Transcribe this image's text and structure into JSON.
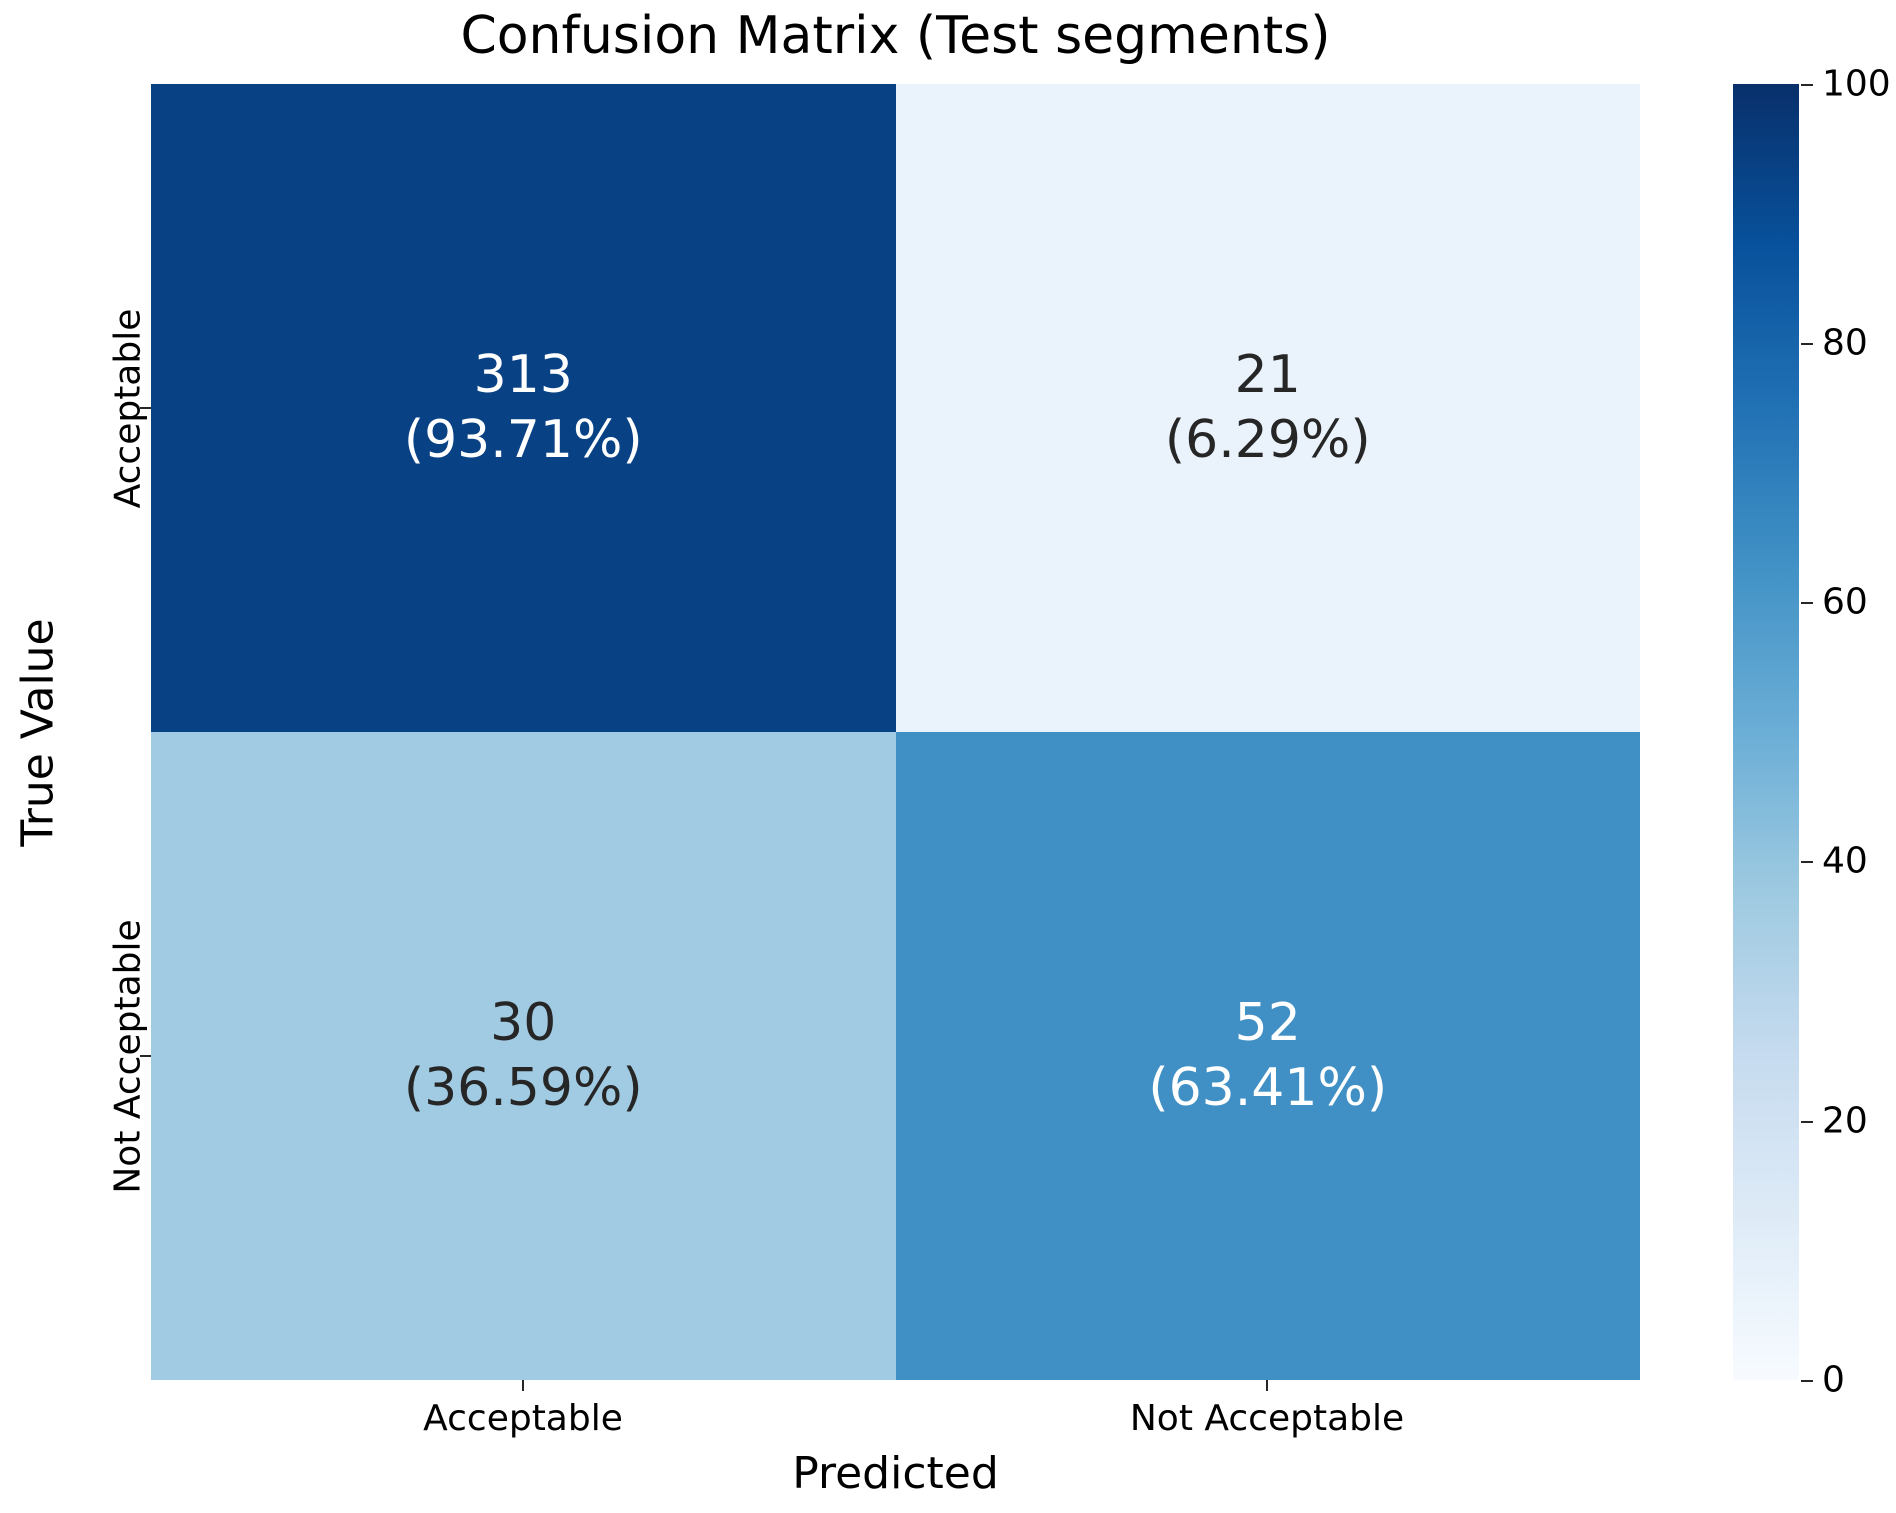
{
  "chart_data": {
    "type": "heatmap",
    "title": "Confusion Matrix (Test segments)",
    "xlabel": "Predicted",
    "ylabel": "True Value",
    "x_categories": [
      "Acceptable",
      "Not Acceptable"
    ],
    "y_categories": [
      "Acceptable",
      "Not Acceptable"
    ],
    "colormap": "Blues",
    "cells": [
      {
        "true": "Acceptable",
        "predicted": "Acceptable",
        "count": "313",
        "percent": "(93.71%)",
        "value": 93.71,
        "bg": "#084184",
        "fg": "#ffffff"
      },
      {
        "true": "Acceptable",
        "predicted": "Not Acceptable",
        "count": "21",
        "percent": "(6.29%)",
        "value": 6.29,
        "bg": "#eaf3fb",
        "fg": "#262626"
      },
      {
        "true": "Not Acceptable",
        "predicted": "Acceptable",
        "count": "30",
        "percent": "(36.59%)",
        "value": 36.59,
        "bg": "#a1cbe2",
        "fg": "#262626"
      },
      {
        "true": "Not Acceptable",
        "predicted": "Not Acceptable",
        "count": "52",
        "percent": "(63.41%)",
        "value": 63.41,
        "bg": "#4090c5",
        "fg": "#ffffff"
      }
    ],
    "colorbar": {
      "min": 0,
      "max": 100,
      "tick_labels_top_to_bottom": [
        "100",
        "80",
        "60",
        "40",
        "20",
        "0"
      ],
      "color_top": "#08306b",
      "color_bottom": "#f7fbff"
    },
    "legend_position": "right",
    "grid": false
  }
}
